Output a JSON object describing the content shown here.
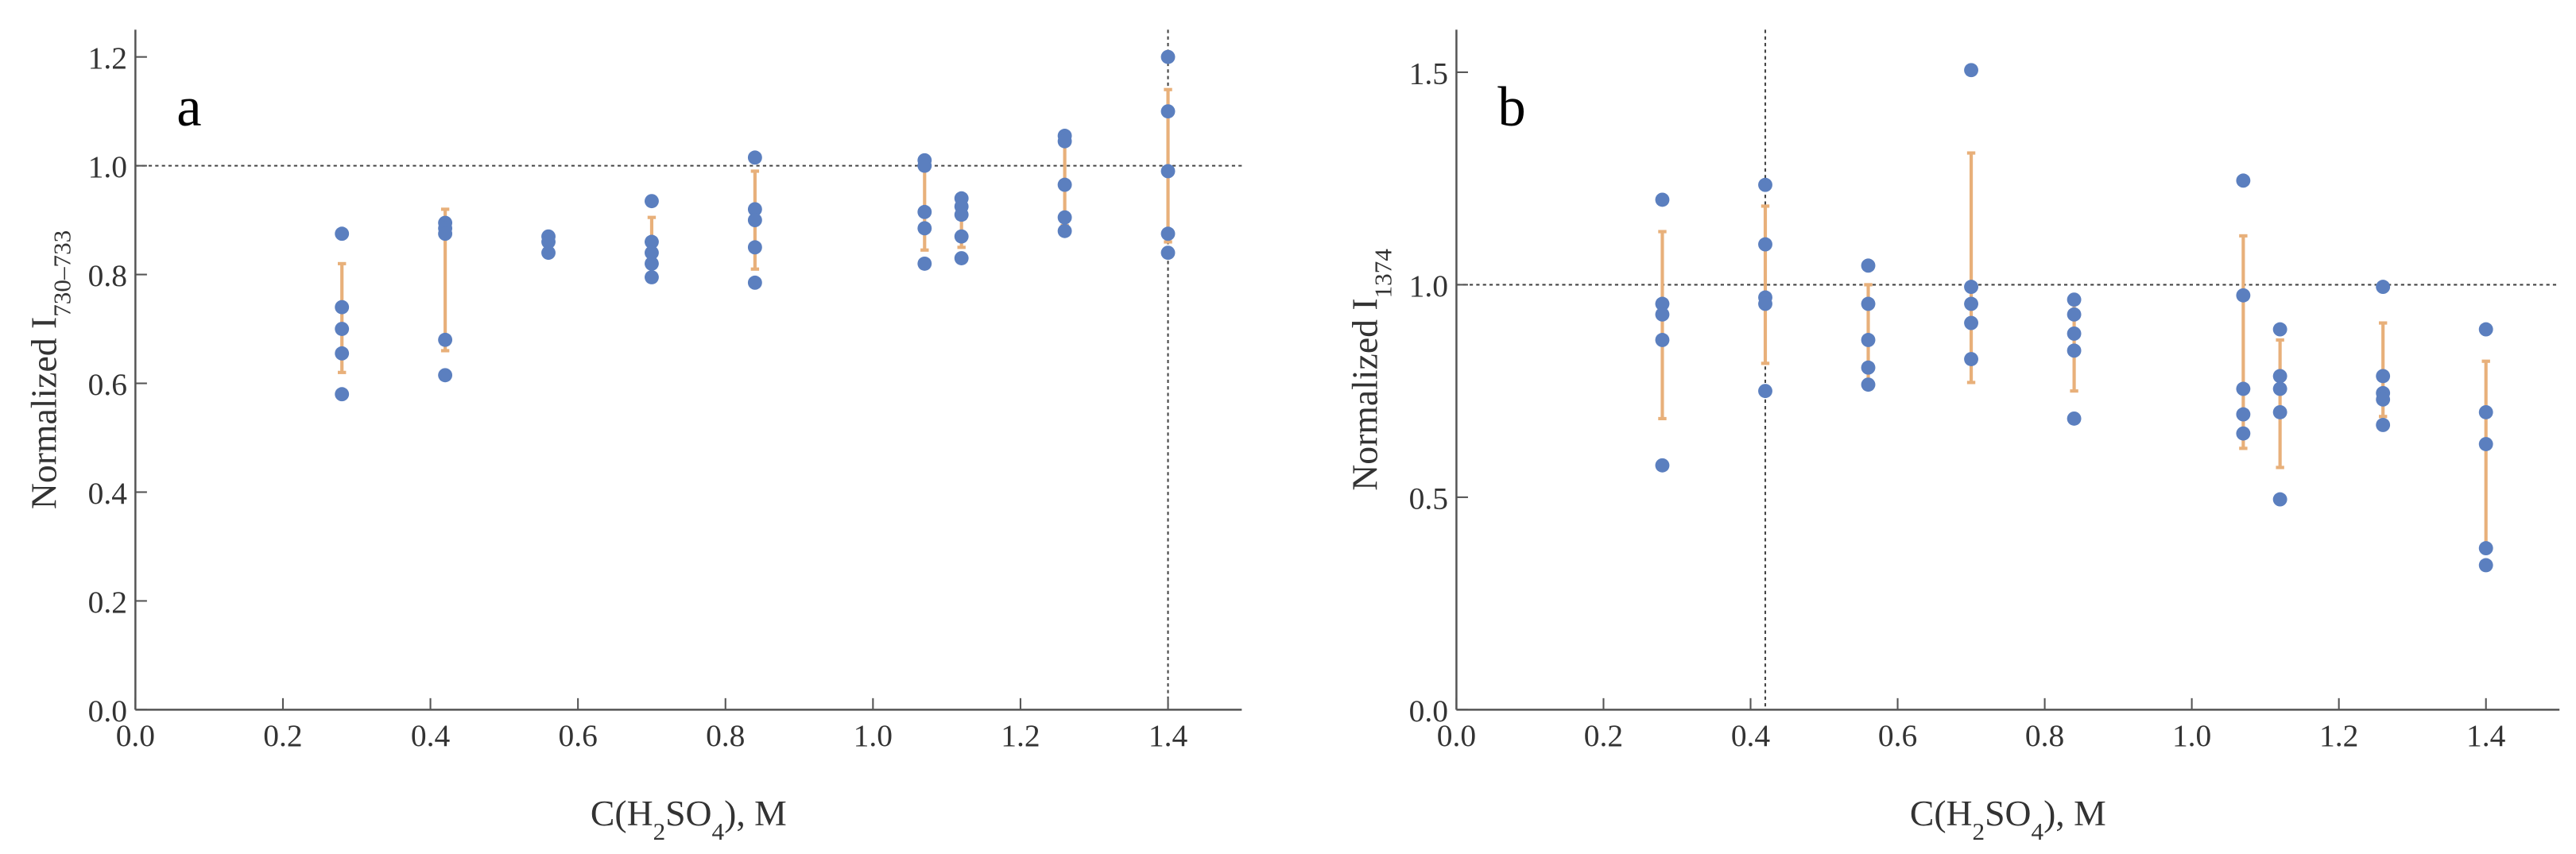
{
  "chart_data": [
    {
      "type": "scatter",
      "label": "a",
      "xlabel_parts": [
        "C(H",
        "2",
        "SO",
        "4",
        "), M"
      ],
      "ylabel_parts": [
        "Normalized  I",
        "730–733"
      ],
      "xlim": [
        0,
        1.5
      ],
      "ylim": [
        0,
        1.25
      ],
      "xticks": [
        {
          "value": 0,
          "label": "0.0"
        },
        0.2,
        0.4,
        0.6,
        0.8,
        {
          "value": 1,
          "label": "1.0"
        },
        1.2,
        1.4
      ],
      "yticks": [
        {
          "value": 0,
          "label": "0.0"
        },
        0.2,
        0.4,
        0.6,
        0.8,
        {
          "value": 1,
          "label": "1.0"
        },
        1.2
      ],
      "hlines": [
        1
      ],
      "vlines": [
        1.4
      ],
      "series": [
        {
          "color": "#5b7fbf",
          "x": [
            0.28,
            0.28,
            0.28,
            0.28,
            0.28,
            0.42,
            0.42,
            0.42,
            0.42,
            0.42,
            0.56,
            0.56,
            0.56,
            0.7,
            0.7,
            0.7,
            0.7,
            0.7,
            0.84,
            0.84,
            0.84,
            0.84,
            0.84,
            1.07,
            1.07,
            1.07,
            1.07,
            1.07,
            1.12,
            1.12,
            1.12,
            1.12,
            1.12,
            1.26,
            1.26,
            1.26,
            1.26,
            1.26,
            1.4,
            1.4,
            1.4,
            1.4,
            1.4
          ],
          "y": [
            0.875,
            0.74,
            0.7,
            0.655,
            0.58,
            0.895,
            0.885,
            0.875,
            0.68,
            0.615,
            0.87,
            0.86,
            0.84,
            0.935,
            0.86,
            0.84,
            0.82,
            0.795,
            1.015,
            0.92,
            0.9,
            0.85,
            0.785,
            1.01,
            1.0,
            0.915,
            0.885,
            0.82,
            0.94,
            0.925,
            0.91,
            0.87,
            0.83,
            1.055,
            1.045,
            0.965,
            0.905,
            0.88,
            1.2,
            1.1,
            0.99,
            0.875,
            0.84
          ]
        }
      ],
      "error_bars": {
        "color": "#e8b07a",
        "x": [
          0.28,
          0.42,
          0.56,
          0.7,
          0.84,
          1.07,
          1.12,
          1.26,
          1.4
        ],
        "values": [
          0.72,
          0.79,
          0.855,
          0.86,
          0.9,
          0.92,
          0.89,
          0.965,
          1.0
        ],
        "errors": [
          0.1,
          0.13,
          0.015,
          0.045,
          0.09,
          0.075,
          0.04,
          0.075,
          0.14
        ]
      }
    },
    {
      "type": "scatter",
      "label": "b",
      "xlabel_parts": [
        "C(H",
        "2",
        "SO",
        "4",
        "), M"
      ],
      "ylabel_parts": [
        "Normalized  I",
        "1374"
      ],
      "xlim": [
        0,
        1.5
      ],
      "ylim": [
        0,
        1.6
      ],
      "xticks": [
        {
          "value": 0,
          "label": "0.0"
        },
        0.2,
        0.4,
        0.6,
        0.8,
        {
          "value": 1,
          "label": "1.0"
        },
        1.2,
        1.4
      ],
      "yticks": [
        {
          "value": 0,
          "label": "0.0"
        },
        0.5,
        {
          "value": 1,
          "label": "1.0"
        },
        1.5
      ],
      "hlines": [
        1
      ],
      "vlines": [
        0.42
      ],
      "series": [
        {
          "color": "#5b7fbf",
          "x": [
            0.28,
            0.28,
            0.28,
            0.28,
            0.28,
            0.42,
            0.42,
            0.42,
            0.42,
            0.42,
            0.56,
            0.56,
            0.56,
            0.56,
            0.56,
            0.7,
            0.7,
            0.7,
            0.7,
            0.7,
            0.84,
            0.84,
            0.84,
            0.84,
            0.84,
            1.07,
            1.07,
            1.07,
            1.07,
            1.07,
            1.12,
            1.12,
            1.12,
            1.12,
            1.12,
            1.26,
            1.26,
            1.26,
            1.26,
            1.26,
            1.4,
            1.4,
            1.4,
            1.4,
            1.4
          ],
          "y": [
            1.2,
            0.955,
            0.93,
            0.87,
            0.575,
            1.235,
            1.095,
            0.97,
            0.955,
            0.75,
            1.045,
            0.955,
            0.87,
            0.805,
            0.765,
            1.505,
            0.995,
            0.955,
            0.91,
            0.825,
            0.965,
            0.93,
            0.885,
            0.845,
            0.685,
            1.245,
            0.975,
            0.755,
            0.695,
            0.65,
            0.895,
            0.785,
            0.755,
            0.7,
            0.495,
            0.995,
            0.785,
            0.745,
            0.73,
            0.67,
            0.895,
            0.7,
            0.625,
            0.38,
            0.34
          ]
        }
      ],
      "error_bars": {
        "color": "#e8b07a",
        "x": [
          0.28,
          0.42,
          0.56,
          0.7,
          0.84,
          1.07,
          1.12,
          1.26,
          1.4
        ],
        "values": [
          0.905,
          1.0,
          0.885,
          1.04,
          0.86,
          0.865,
          0.72,
          0.8,
          0.605
        ],
        "errors": [
          0.22,
          0.185,
          0.115,
          0.27,
          0.11,
          0.25,
          0.15,
          0.11,
          0.215
        ]
      }
    }
  ]
}
